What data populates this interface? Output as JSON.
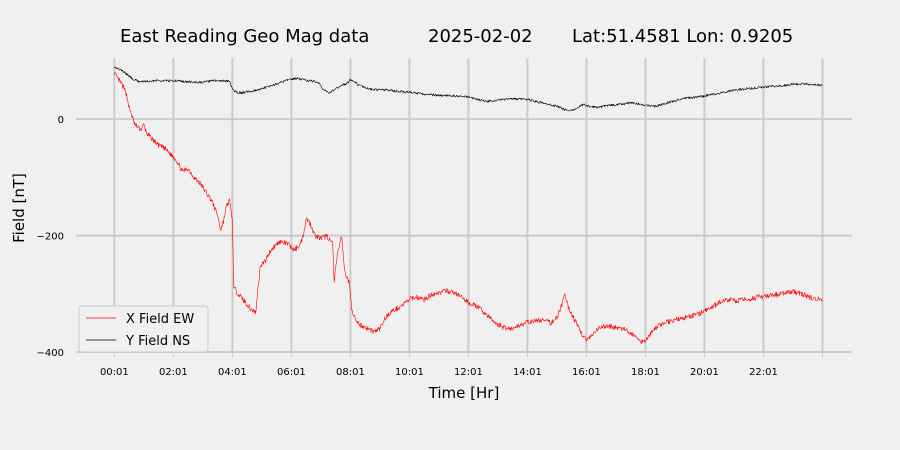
{
  "chart_data": {
    "type": "line",
    "title_parts": [
      "East Reading Geo Mag data",
      "2025-02-02",
      "Lat:51.4581  Lon: 0.9205"
    ],
    "xlabel": "Time  [Hr]",
    "ylabel": "Field  [nT]",
    "x_unit": "hours since 00:01",
    "xlim": [
      -1.3,
      25.0
    ],
    "ylim": [
      -400,
      105
    ],
    "x_ticks": [
      {
        "x": 0,
        "label": "00:01"
      },
      {
        "x": 2,
        "label": "02:01"
      },
      {
        "x": 4,
        "label": "04:01"
      },
      {
        "x": 6,
        "label": "06:01"
      },
      {
        "x": 8,
        "label": "08:01"
      },
      {
        "x": 10,
        "label": "10:01"
      },
      {
        "x": 12,
        "label": "12:01"
      },
      {
        "x": 14,
        "label": "14:01"
      },
      {
        "x": 16,
        "label": "16:01"
      },
      {
        "x": 18,
        "label": "18:01"
      },
      {
        "x": 20,
        "label": "20:01"
      },
      {
        "x": 22,
        "label": "22:01"
      },
      {
        "x": 24,
        "label": ""
      }
    ],
    "y_ticks": [
      {
        "y": 0,
        "label": "0"
      },
      {
        "y": -200,
        "label": "−200"
      },
      {
        "y": -400,
        "label": "−400"
      }
    ],
    "grid": true,
    "legend_position": "lower-left",
    "series": [
      {
        "name": "X Field EW",
        "color": "#ff0000",
        "points": [
          [
            0.0,
            80
          ],
          [
            0.1,
            70
          ],
          [
            0.25,
            60
          ],
          [
            0.4,
            45
          ],
          [
            0.5,
            20
          ],
          [
            0.6,
            5
          ],
          [
            0.7,
            -10
          ],
          [
            0.9,
            -18
          ],
          [
            1.0,
            -10
          ],
          [
            1.1,
            -25
          ],
          [
            1.3,
            -35
          ],
          [
            1.5,
            -45
          ],
          [
            1.7,
            -50
          ],
          [
            1.9,
            -60
          ],
          [
            2.1,
            -70
          ],
          [
            2.3,
            -90
          ],
          [
            2.5,
            -85
          ],
          [
            2.7,
            -100
          ],
          [
            2.9,
            -110
          ],
          [
            3.1,
            -125
          ],
          [
            3.3,
            -140
          ],
          [
            3.5,
            -165
          ],
          [
            3.6,
            -190
          ],
          [
            3.7,
            -175
          ],
          [
            3.8,
            -150
          ],
          [
            3.9,
            -140
          ],
          [
            4.0,
            -175
          ],
          [
            4.05,
            -290
          ],
          [
            4.2,
            -300
          ],
          [
            4.4,
            -312
          ],
          [
            4.6,
            -325
          ],
          [
            4.8,
            -332
          ],
          [
            4.85,
            -300
          ],
          [
            4.95,
            -250
          ],
          [
            5.1,
            -245
          ],
          [
            5.3,
            -225
          ],
          [
            5.6,
            -210
          ],
          [
            5.9,
            -215
          ],
          [
            6.1,
            -225
          ],
          [
            6.3,
            -215
          ],
          [
            6.4,
            -200
          ],
          [
            6.5,
            -170
          ],
          [
            6.65,
            -180
          ],
          [
            6.8,
            -200
          ],
          [
            7.0,
            -205
          ],
          [
            7.2,
            -200
          ],
          [
            7.4,
            -215
          ],
          [
            7.45,
            -280
          ],
          [
            7.55,
            -235
          ],
          [
            7.7,
            -200
          ],
          [
            7.8,
            -260
          ],
          [
            7.95,
            -280
          ],
          [
            8.05,
            -325
          ],
          [
            8.2,
            -350
          ],
          [
            8.4,
            -355
          ],
          [
            8.6,
            -360
          ],
          [
            8.8,
            -365
          ],
          [
            9.0,
            -360
          ],
          [
            9.2,
            -340
          ],
          [
            9.4,
            -330
          ],
          [
            9.6,
            -325
          ],
          [
            9.8,
            -318
          ],
          [
            10.0,
            -310
          ],
          [
            10.2,
            -305
          ],
          [
            10.5,
            -310
          ],
          [
            10.8,
            -300
          ],
          [
            11.0,
            -298
          ],
          [
            11.3,
            -295
          ],
          [
            11.6,
            -300
          ],
          [
            12.0,
            -315
          ],
          [
            12.3,
            -322
          ],
          [
            12.6,
            -335
          ],
          [
            12.9,
            -350
          ],
          [
            13.2,
            -358
          ],
          [
            13.5,
            -360
          ],
          [
            13.8,
            -352
          ],
          [
            14.1,
            -348
          ],
          [
            14.5,
            -345
          ],
          [
            14.8,
            -350
          ],
          [
            15.0,
            -340
          ],
          [
            15.2,
            -315
          ],
          [
            15.25,
            -300
          ],
          [
            15.4,
            -325
          ],
          [
            15.6,
            -345
          ],
          [
            15.8,
            -365
          ],
          [
            16.0,
            -380
          ],
          [
            16.2,
            -372
          ],
          [
            16.4,
            -360
          ],
          [
            16.7,
            -355
          ],
          [
            17.0,
            -358
          ],
          [
            17.3,
            -362
          ],
          [
            17.6,
            -370
          ],
          [
            17.8,
            -382
          ],
          [
            18.0,
            -380
          ],
          [
            18.3,
            -360
          ],
          [
            18.6,
            -350
          ],
          [
            19.0,
            -345
          ],
          [
            19.4,
            -340
          ],
          [
            19.8,
            -335
          ],
          [
            20.2,
            -325
          ],
          [
            20.5,
            -315
          ],
          [
            20.8,
            -310
          ],
          [
            21.1,
            -312
          ],
          [
            21.4,
            -310
          ],
          [
            21.8,
            -306
          ],
          [
            22.2,
            -304
          ],
          [
            22.6,
            -300
          ],
          [
            23.0,
            -296
          ],
          [
            23.3,
            -300
          ],
          [
            23.6,
            -307
          ],
          [
            24.0,
            -310
          ]
        ]
      },
      {
        "name": "Y Field NS",
        "color": "#000000",
        "points": [
          [
            0.0,
            90
          ],
          [
            0.2,
            85
          ],
          [
            0.4,
            78
          ],
          [
            0.6,
            70
          ],
          [
            0.8,
            65
          ],
          [
            1.0,
            65
          ],
          [
            1.5,
            66
          ],
          [
            2.0,
            66
          ],
          [
            2.5,
            64
          ],
          [
            3.0,
            63
          ],
          [
            3.3,
            66
          ],
          [
            3.6,
            66
          ],
          [
            3.9,
            65
          ],
          [
            4.0,
            52
          ],
          [
            4.1,
            47
          ],
          [
            4.3,
            45
          ],
          [
            4.6,
            48
          ],
          [
            5.0,
            52
          ],
          [
            5.3,
            57
          ],
          [
            5.6,
            62
          ],
          [
            5.9,
            68
          ],
          [
            6.2,
            70
          ],
          [
            6.6,
            66
          ],
          [
            6.9,
            64
          ],
          [
            7.1,
            50
          ],
          [
            7.3,
            45
          ],
          [
            7.6,
            55
          ],
          [
            7.9,
            62
          ],
          [
            8.0,
            68
          ],
          [
            8.3,
            58
          ],
          [
            8.6,
            52
          ],
          [
            9.0,
            50
          ],
          [
            9.3,
            50
          ],
          [
            9.6,
            48
          ],
          [
            10.0,
            46
          ],
          [
            10.5,
            43
          ],
          [
            11.0,
            41
          ],
          [
            11.5,
            40
          ],
          [
            12.0,
            38
          ],
          [
            12.3,
            34
          ],
          [
            12.6,
            30
          ],
          [
            13.0,
            33
          ],
          [
            13.5,
            35
          ],
          [
            14.0,
            34
          ],
          [
            14.3,
            30
          ],
          [
            14.6,
            27
          ],
          [
            15.0,
            22
          ],
          [
            15.3,
            16
          ],
          [
            15.5,
            15
          ],
          [
            15.7,
            20
          ],
          [
            15.9,
            25
          ],
          [
            16.1,
            22
          ],
          [
            16.4,
            20
          ],
          [
            16.8,
            24
          ],
          [
            17.2,
            26
          ],
          [
            17.6,
            28
          ],
          [
            18.0,
            24
          ],
          [
            18.3,
            22
          ],
          [
            18.6,
            26
          ],
          [
            19.0,
            32
          ],
          [
            19.4,
            36
          ],
          [
            19.8,
            38
          ],
          [
            20.2,
            42
          ],
          [
            20.6,
            45
          ],
          [
            21.0,
            50
          ],
          [
            21.4,
            52
          ],
          [
            21.8,
            54
          ],
          [
            22.2,
            56
          ],
          [
            22.6,
            57
          ],
          [
            23.0,
            60
          ],
          [
            23.4,
            61
          ],
          [
            23.7,
            59
          ],
          [
            24.0,
            58
          ]
        ]
      }
    ]
  }
}
